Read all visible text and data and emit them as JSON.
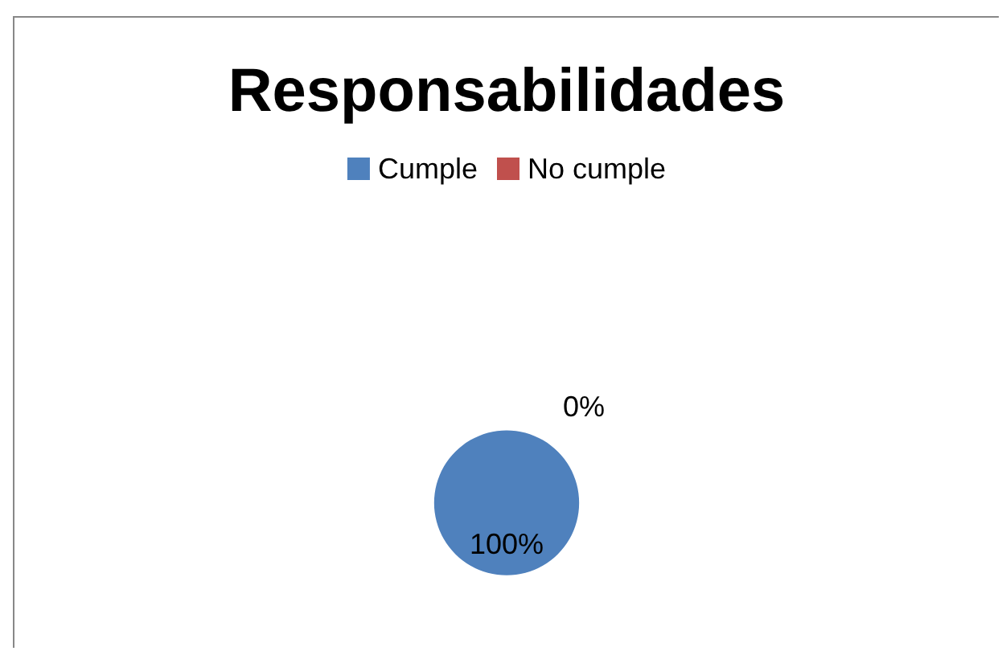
{
  "chart_data": {
    "type": "pie",
    "title": "Responsabilidades",
    "categories": [
      "Cumple",
      "No cumple"
    ],
    "values": [
      100,
      0
    ],
    "colors": [
      "#4f81bd",
      "#c0504d"
    ],
    "value_labels": [
      "100%",
      "0%"
    ],
    "legend": "top"
  }
}
